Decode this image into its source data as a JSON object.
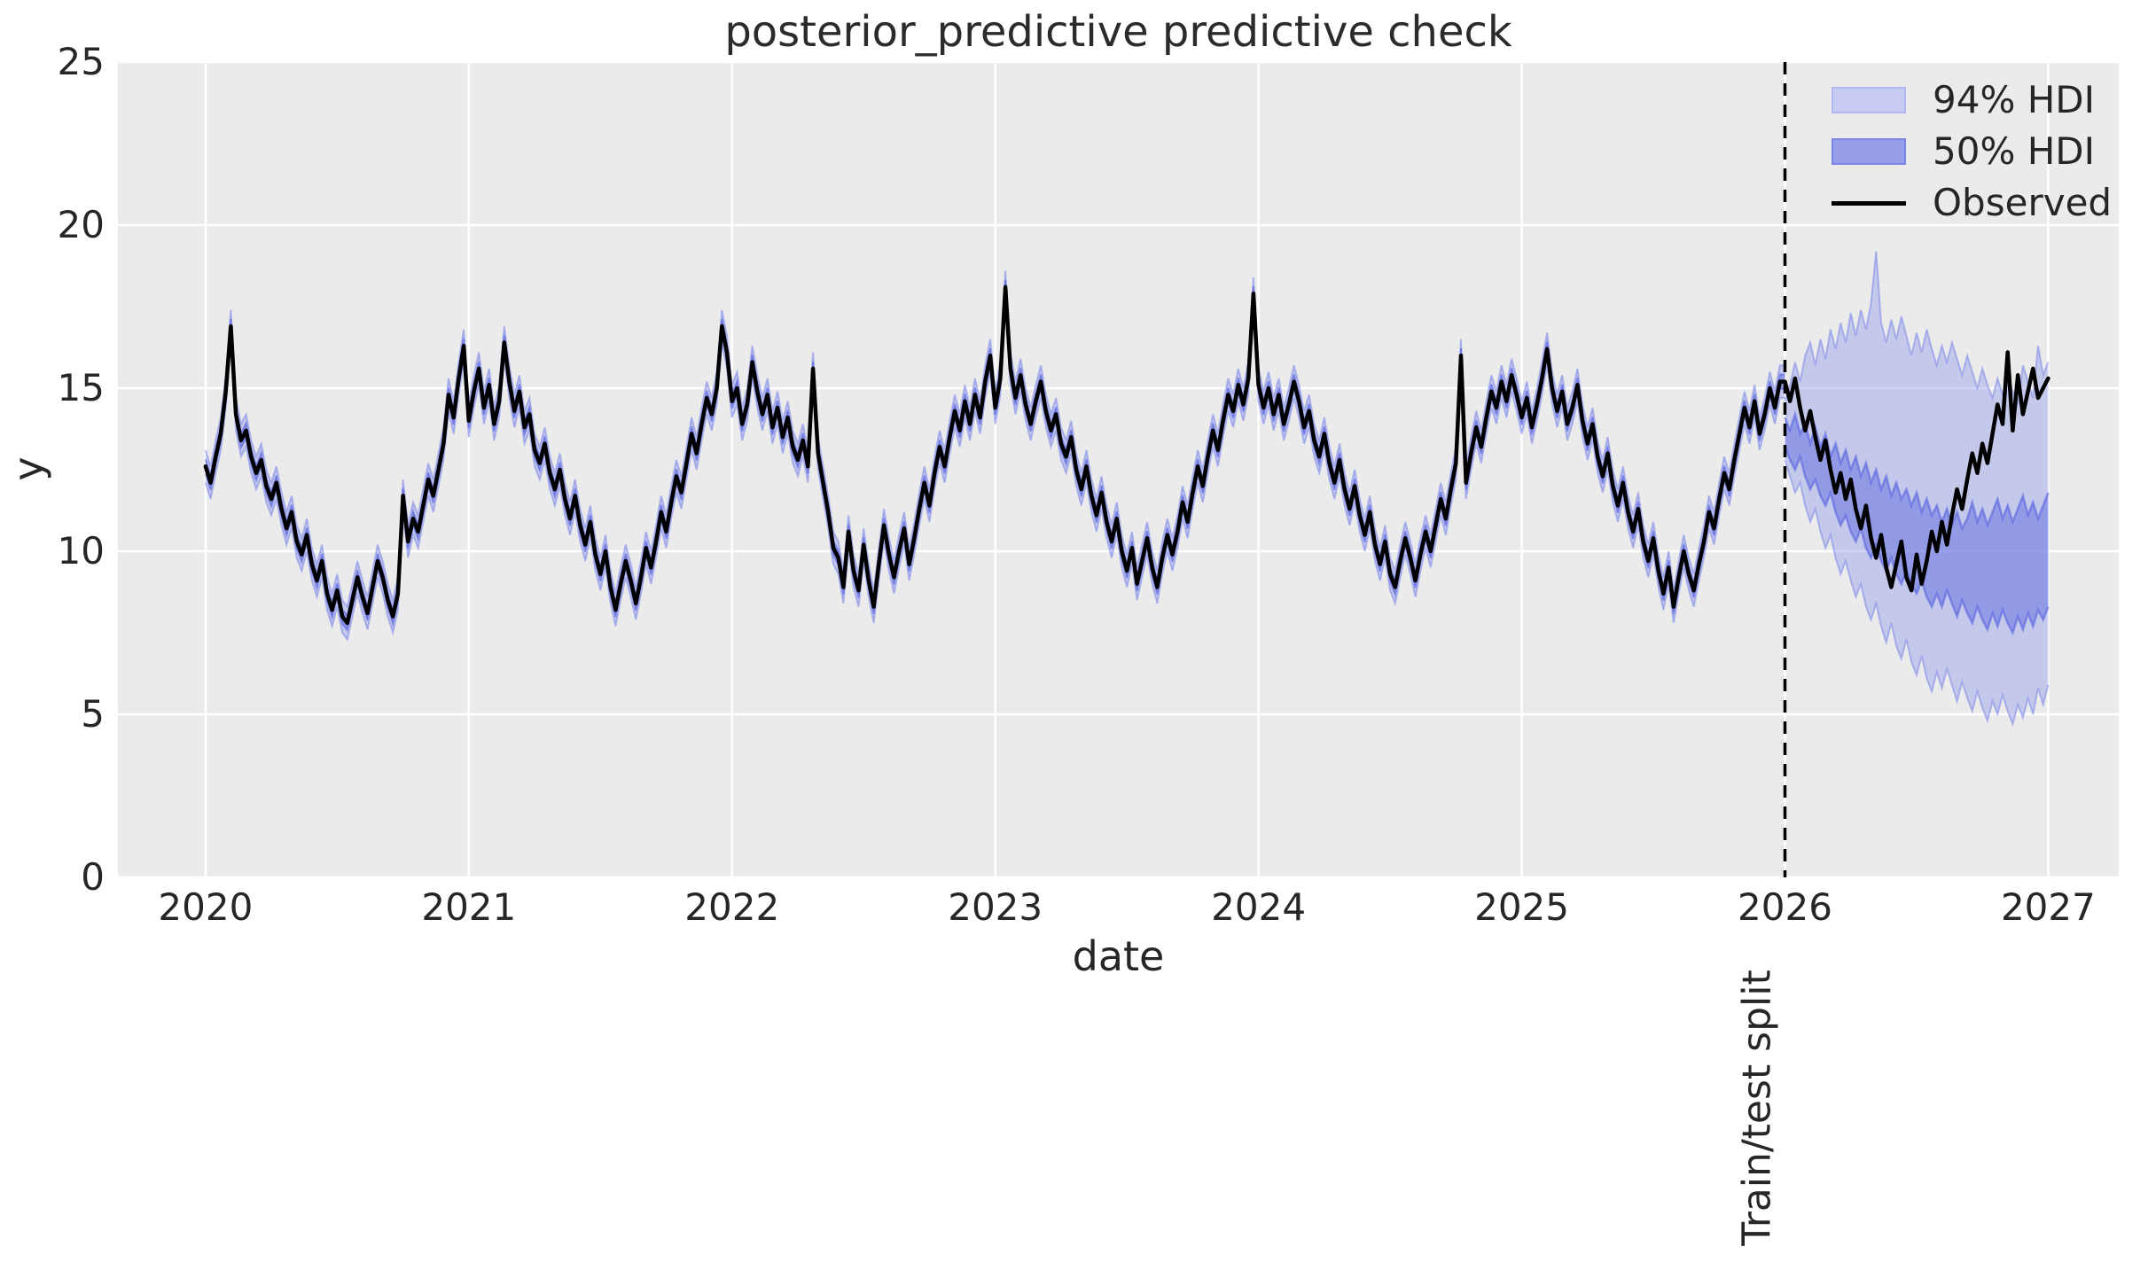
{
  "figure": {
    "title": "posterior_predictive predictive check"
  },
  "axes": {
    "xlabel": "date",
    "ylabel": "y",
    "background": "#ebebeb",
    "grid_color": "#ffffff",
    "text_color": "#262626"
  },
  "split_line": {
    "x": 2026,
    "label": "Train/test split",
    "color": "#000000",
    "style": "dashed"
  },
  "legend": {
    "position": "upper right",
    "items": [
      {
        "label": "94% HDI",
        "type": "patch",
        "fill": "#c7cbf1",
        "edge": "#b2b8ee"
      },
      {
        "label": "50% HDI",
        "type": "patch",
        "fill": "#969ee8",
        "edge": "#7d86e4"
      },
      {
        "label": "Observed",
        "type": "line",
        "color": "#000000"
      }
    ]
  },
  "style": {
    "plot_bg": "#ebebeb",
    "grid": "#ffffff",
    "hdi94_fill": "rgba(124,135,233,0.35)",
    "hdi94_edge": "rgba(124,135,233,0.55)",
    "hdi50_fill": "rgba(99,111,227,0.52)",
    "hdi50_edge": "rgba(86,98,224,0.6)",
    "observed": "#000000",
    "split": "#000000"
  },
  "chart_data": {
    "type": "line",
    "title": "posterior_predictive predictive check",
    "xlabel": "date",
    "ylabel": "y",
    "grid": true,
    "legend_position": "upper right",
    "ylim": [
      0,
      25
    ],
    "x_range": [
      2019.667,
      2027.268
    ],
    "x_ticks": [
      2020,
      2021,
      2022,
      2023,
      2024,
      2025,
      2026,
      2027
    ],
    "y_ticks": [
      0,
      5,
      10,
      15,
      20,
      25
    ],
    "train_test_split_x": 2026,
    "pre_split_hdi": {
      "hdi94_half_width": 0.5,
      "hdi50_half_width": 0.22
    },
    "series": [
      {
        "name": "Observed",
        "x_start": 2020,
        "x_step": 0.01923077,
        "values": [
          12.6,
          12.1,
          12.9,
          13.6,
          14.9,
          16.9,
          14.2,
          13.4,
          13.7,
          12.9,
          12.4,
          12.8,
          12.0,
          11.6,
          12.1,
          11.3,
          10.7,
          11.2,
          10.3,
          9.9,
          10.5,
          9.6,
          9.1,
          9.7,
          8.7,
          8.2,
          8.8,
          8.0,
          7.8,
          8.5,
          9.2,
          8.6,
          8.1,
          8.9,
          9.7,
          9.2,
          8.5,
          8.0,
          8.7,
          11.7,
          10.3,
          11.0,
          10.6,
          11.4,
          12.2,
          11.7,
          12.5,
          13.3,
          14.8,
          14.1,
          15.3,
          16.3,
          14.0,
          14.9,
          15.6,
          14.4,
          15.1,
          13.9,
          14.6,
          16.4,
          15.2,
          14.3,
          14.9,
          13.8,
          14.2,
          13.1,
          12.7,
          13.3,
          12.4,
          11.9,
          12.5,
          11.6,
          11.0,
          11.7,
          10.8,
          10.2,
          10.9,
          9.9,
          9.3,
          10.0,
          8.9,
          8.2,
          9.0,
          9.7,
          9.1,
          8.4,
          9.2,
          10.1,
          9.5,
          10.3,
          11.2,
          10.6,
          11.5,
          12.3,
          11.8,
          12.7,
          13.6,
          13.0,
          13.9,
          14.7,
          14.2,
          15.0,
          16.9,
          16.1,
          14.6,
          15.0,
          13.9,
          14.5,
          15.8,
          14.9,
          14.2,
          14.8,
          13.8,
          14.4,
          13.5,
          14.1,
          13.2,
          12.8,
          13.4,
          12.6,
          15.6,
          13.0,
          12.1,
          11.2,
          10.1,
          9.8,
          8.9,
          10.6,
          9.4,
          8.8,
          10.2,
          9.1,
          8.3,
          9.6,
          10.8,
          9.9,
          9.2,
          10.0,
          10.7,
          9.6,
          10.4,
          11.3,
          12.1,
          11.4,
          12.4,
          13.2,
          12.6,
          13.5,
          14.3,
          13.7,
          14.6,
          13.9,
          14.8,
          14.1,
          15.2,
          16.0,
          14.4,
          15.3,
          18.1,
          15.6,
          14.7,
          15.4,
          14.5,
          13.9,
          14.6,
          15.2,
          14.3,
          13.7,
          14.2,
          13.3,
          12.9,
          13.5,
          12.5,
          11.9,
          12.6,
          11.7,
          11.1,
          11.8,
          10.9,
          10.3,
          11.0,
          10.0,
          9.4,
          10.1,
          9.0,
          9.7,
          10.4,
          9.5,
          8.9,
          9.8,
          10.5,
          9.9,
          10.6,
          11.5,
          10.9,
          11.8,
          12.6,
          12.0,
          12.9,
          13.7,
          13.1,
          14.0,
          14.8,
          14.3,
          15.1,
          14.5,
          15.3,
          17.9,
          15.1,
          14.4,
          15.0,
          14.2,
          14.8,
          13.9,
          14.5,
          15.2,
          14.6,
          13.8,
          14.3,
          13.4,
          12.9,
          13.6,
          12.7,
          12.1,
          12.8,
          11.9,
          11.3,
          12.0,
          11.1,
          10.5,
          11.2,
          10.2,
          9.6,
          10.3,
          9.3,
          8.9,
          9.7,
          10.4,
          9.8,
          9.1,
          9.9,
          10.6,
          10.0,
          10.8,
          11.6,
          11.0,
          11.9,
          12.7,
          16.0,
          12.1,
          13.0,
          13.8,
          13.2,
          14.1,
          14.9,
          14.4,
          15.2,
          14.6,
          15.4,
          14.8,
          14.1,
          14.7,
          13.8,
          14.5,
          15.3,
          16.2,
          15.0,
          14.3,
          14.9,
          13.9,
          14.4,
          15.1,
          14.0,
          13.3,
          13.9,
          12.9,
          12.3,
          13.0,
          12.0,
          11.4,
          12.1,
          11.2,
          10.6,
          11.3,
          10.3,
          9.7,
          10.4,
          9.4,
          8.7,
          9.5,
          8.3,
          9.2,
          10.0,
          9.3,
          8.8,
          9.6,
          10.3,
          11.2,
          10.7,
          11.6,
          12.4,
          11.9,
          12.8,
          13.6,
          14.4,
          13.8,
          14.6,
          13.6,
          14.2,
          15.0,
          14.4,
          15.2,
          15.2,
          14.6,
          15.3,
          14.4,
          13.7,
          14.3,
          13.5,
          12.8,
          13.4,
          12.5,
          11.8,
          12.4,
          11.6,
          12.2,
          11.3,
          10.7,
          11.4,
          10.4,
          9.8,
          10.5,
          9.5,
          8.9,
          9.6,
          10.3,
          9.2,
          8.8,
          9.9,
          9.0,
          9.7,
          10.6,
          10.0,
          10.9,
          10.2,
          11.1,
          11.9,
          11.3,
          12.2,
          13.0,
          12.4,
          13.3,
          12.7,
          13.6,
          14.5,
          13.9,
          16.1,
          13.7,
          15.4,
          14.2,
          14.9,
          15.6,
          14.7,
          15.0,
          15.3
        ]
      },
      {
        "name": "94% HDI upper bound (forecast)",
        "x_start": 2026,
        "x_step": 0.01923077,
        "values": [
          14.6,
          15.1,
          15.8,
          15.2,
          16.0,
          16.4,
          15.7,
          16.5,
          15.9,
          16.8,
          16.2,
          17.0,
          16.4,
          17.3,
          16.6,
          17.4,
          16.8,
          17.6,
          19.2,
          17.0,
          16.4,
          17.1,
          16.5,
          17.2,
          16.6,
          16.0,
          16.7,
          16.1,
          16.8,
          16.2,
          15.7,
          16.3,
          15.8,
          16.4,
          15.9,
          15.4,
          16.0,
          15.5,
          15.0,
          15.6,
          15.1,
          14.7,
          15.3,
          14.8,
          15.4,
          14.9,
          14.5,
          15.7,
          15.2,
          14.7,
          16.3,
          15.4,
          15.8
        ]
      },
      {
        "name": "94% HDI lower bound (forecast)",
        "x_start": 2026,
        "x_step": 0.01923077,
        "values": [
          12.8,
          12.3,
          11.8,
          12.1,
          11.4,
          10.9,
          11.3,
          10.6,
          10.1,
          10.5,
          9.8,
          9.3,
          9.7,
          9.1,
          8.6,
          9.0,
          8.3,
          7.9,
          8.4,
          7.7,
          7.2,
          7.8,
          7.1,
          6.7,
          7.3,
          6.6,
          6.2,
          6.8,
          6.1,
          5.7,
          6.3,
          5.8,
          6.4,
          5.9,
          5.4,
          6.0,
          5.5,
          5.1,
          5.7,
          5.2,
          4.8,
          5.4,
          5.0,
          5.6,
          5.1,
          4.7,
          5.3,
          4.9,
          5.5,
          5.0,
          5.8,
          5.3,
          5.9
        ]
      },
      {
        "name": "50% HDI upper bound (forecast)",
        "x_start": 2026,
        "x_step": 0.01923077,
        "values": [
          14.1,
          13.7,
          14.2,
          13.6,
          13.9,
          13.3,
          13.8,
          13.2,
          13.6,
          12.9,
          13.3,
          12.7,
          13.1,
          12.5,
          12.9,
          12.3,
          12.7,
          12.1,
          12.5,
          11.9,
          12.3,
          11.7,
          12.1,
          11.6,
          11.9,
          11.4,
          11.8,
          11.2,
          11.6,
          11.1,
          11.4,
          10.9,
          11.3,
          10.8,
          11.2,
          10.7,
          11.0,
          11.5,
          10.9,
          11.3,
          10.8,
          11.2,
          11.6,
          11.0,
          11.4,
          10.9,
          11.3,
          11.7,
          11.1,
          11.5,
          11.0,
          11.4,
          11.8
        ]
      },
      {
        "name": "50% HDI lower bound (forecast)",
        "x_start": 2026,
        "x_step": 0.01923077,
        "values": [
          13.2,
          12.8,
          12.5,
          12.9,
          12.3,
          11.9,
          12.2,
          11.7,
          11.4,
          11.8,
          11.2,
          10.8,
          11.1,
          10.6,
          10.3,
          10.7,
          10.1,
          9.8,
          10.2,
          9.7,
          9.4,
          9.8,
          9.3,
          9.0,
          9.4,
          9.0,
          8.7,
          9.1,
          8.6,
          8.3,
          8.7,
          8.3,
          8.8,
          8.4,
          8.0,
          8.5,
          8.1,
          7.8,
          8.3,
          7.9,
          7.6,
          8.1,
          7.7,
          8.2,
          7.8,
          7.5,
          8.0,
          7.6,
          8.1,
          7.7,
          8.2,
          7.9,
          8.3
        ]
      }
    ]
  }
}
